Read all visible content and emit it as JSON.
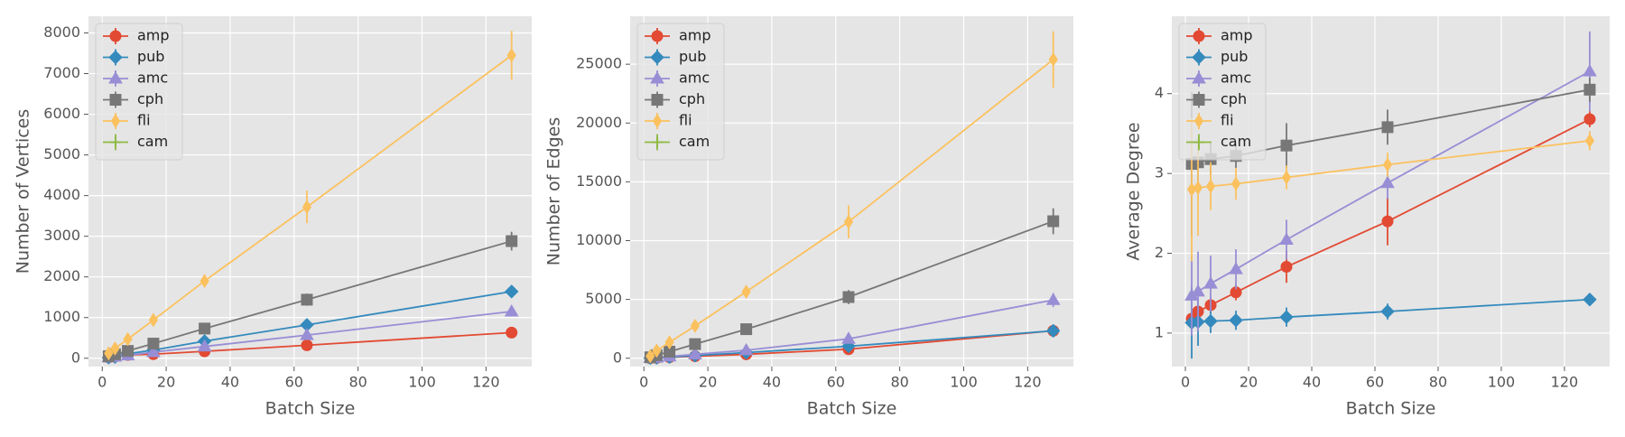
{
  "chart_data": [
    {
      "type": "line",
      "xlabel": "Batch Size",
      "ylabel": "Number of Vertices",
      "x": [
        2,
        4,
        8,
        16,
        32,
        64,
        128
      ],
      "xlim": [
        -4.3,
        134.3
      ],
      "xticks": [
        0,
        20,
        40,
        60,
        80,
        100,
        120
      ],
      "ylim": [
        -205,
        8410
      ],
      "yticks": [
        0,
        1000,
        2000,
        3000,
        4000,
        5000,
        6000,
        7000,
        8000
      ],
      "grid": true,
      "legend": "upper left",
      "series": [
        {
          "name": "amp",
          "color": "#E24A33",
          "marker": "circle",
          "values": [
            20,
            40,
            80,
            100,
            170,
            320,
            630
          ],
          "errors": [
            10,
            15,
            20,
            25,
            30,
            40,
            50
          ]
        },
        {
          "name": "pub",
          "color": "#348ABD",
          "marker": "diamond",
          "values": [
            15,
            30,
            110,
            200,
            420,
            820,
            1640
          ],
          "errors": [
            10,
            15,
            20,
            30,
            40,
            50,
            60
          ]
        },
        {
          "name": "amc",
          "color": "#988ED5",
          "marker": "triangle",
          "values": [
            20,
            40,
            70,
            150,
            290,
            570,
            1150
          ],
          "errors": [
            10,
            15,
            20,
            30,
            40,
            60,
            80
          ]
        },
        {
          "name": "cph",
          "color": "#777777",
          "marker": "square",
          "values": [
            50,
            100,
            180,
            360,
            730,
            1440,
            2880
          ],
          "errors": [
            20,
            30,
            40,
            50,
            80,
            150,
            230
          ]
        },
        {
          "name": "fli",
          "color": "#FBC15E",
          "marker": "thin_diamond",
          "values": [
            120,
            240,
            470,
            940,
            1900,
            3720,
            7450
          ],
          "errors": [
            40,
            60,
            60,
            80,
            100,
            400,
            600
          ]
        },
        {
          "name": "cam",
          "color": "#8EBA42",
          "marker": "plus",
          "values": [
            null,
            null,
            null,
            null,
            null,
            null,
            null
          ],
          "errors": [
            null,
            null,
            null,
            null,
            null,
            null,
            null
          ]
        }
      ]
    },
    {
      "type": "line",
      "xlabel": "Batch Size",
      "ylabel": "Number of Edges",
      "x": [
        2,
        4,
        8,
        16,
        32,
        64,
        128
      ],
      "xlim": [
        -4.3,
        134.3
      ],
      "xticks": [
        0,
        20,
        40,
        60,
        80,
        100,
        120
      ],
      "ylim": [
        -710,
        29080
      ],
      "yticks": [
        0,
        5000,
        10000,
        15000,
        20000,
        25000
      ],
      "grid": true,
      "legend": "upper left",
      "series": [
        {
          "name": "amp",
          "color": "#E24A33",
          "marker": "circle",
          "values": [
            10,
            30,
            80,
            170,
            330,
            770,
            2330
          ],
          "errors": [
            5,
            10,
            20,
            30,
            50,
            80,
            150
          ]
        },
        {
          "name": "pub",
          "color": "#348ABD",
          "marker": "diamond",
          "values": [
            15,
            35,
            100,
            230,
            480,
            1020,
            2330
          ],
          "errors": [
            5,
            10,
            20,
            30,
            50,
            80,
            150
          ]
        },
        {
          "name": "amc",
          "color": "#988ED5",
          "marker": "triangle",
          "values": [
            20,
            50,
            150,
            330,
            680,
            1650,
            4950
          ],
          "errors": [
            10,
            20,
            40,
            60,
            100,
            250,
            600
          ]
        },
        {
          "name": "cph",
          "color": "#777777",
          "marker": "square",
          "values": [
            80,
            260,
            560,
            1200,
            2470,
            5200,
            11650
          ],
          "errors": [
            40,
            60,
            80,
            120,
            200,
            600,
            1100
          ]
        },
        {
          "name": "fli",
          "color": "#FBC15E",
          "marker": "thin_diamond",
          "values": [
            180,
            650,
            1350,
            2750,
            5650,
            11600,
            25400
          ],
          "errors": [
            100,
            150,
            200,
            300,
            400,
            1400,
            2400
          ]
        },
        {
          "name": "cam",
          "color": "#8EBA42",
          "marker": "plus",
          "values": [
            null,
            null,
            null,
            null,
            null,
            null,
            null
          ],
          "errors": [
            null,
            null,
            null,
            null,
            null,
            null,
            null
          ]
        }
      ]
    },
    {
      "type": "line",
      "xlabel": "Batch Size",
      "ylabel": "Average Degree",
      "x": [
        2,
        4,
        8,
        16,
        32,
        64,
        128
      ],
      "xlim": [
        -4.3,
        134.3
      ],
      "xticks": [
        0,
        20,
        40,
        60,
        80,
        100,
        120
      ],
      "ylim": [
        0.58,
        4.97
      ],
      "yticks": [
        1,
        2,
        3,
        4
      ],
      "grid": true,
      "legend": "upper left",
      "series": [
        {
          "name": "amp",
          "color": "#E24A33",
          "marker": "circle",
          "values": [
            1.18,
            1.27,
            1.35,
            1.51,
            1.83,
            2.4,
            3.68
          ],
          "errors": [
            0.1,
            0.1,
            0.1,
            0.1,
            0.2,
            0.3,
            0.1
          ]
        },
        {
          "name": "pub",
          "color": "#348ABD",
          "marker": "diamond",
          "values": [
            1.13,
            1.14,
            1.15,
            1.16,
            1.2,
            1.27,
            1.42
          ],
          "errors": [
            0.45,
            0.3,
            0.15,
            0.12,
            0.12,
            0.1,
            0.05
          ]
        },
        {
          "name": "amc",
          "color": "#988ED5",
          "marker": "triangle",
          "values": [
            1.47,
            1.52,
            1.62,
            1.8,
            2.17,
            2.88,
            4.28
          ],
          "errors": [
            0.5,
            0.5,
            0.35,
            0.25,
            0.25,
            0.2,
            0.5
          ]
        },
        {
          "name": "cph",
          "color": "#777777",
          "marker": "square",
          "values": [
            3.12,
            3.14,
            3.18,
            3.22,
            3.35,
            3.58,
            4.05
          ],
          "errors": [
            0.9,
            0.3,
            0.2,
            0.15,
            0.28,
            0.22,
            0.15
          ]
        },
        {
          "name": "fli",
          "color": "#FBC15E",
          "marker": "thin_diamond",
          "values": [
            2.8,
            2.82,
            2.84,
            2.87,
            2.95,
            3.11,
            3.41
          ],
          "errors": [
            0.9,
            0.6,
            0.3,
            0.2,
            0.15,
            0.15,
            0.12
          ]
        },
        {
          "name": "cam",
          "color": "#8EBA42",
          "marker": "plus",
          "values": [
            null,
            null,
            null,
            null,
            null,
            null,
            null
          ],
          "errors": [
            null,
            null,
            null,
            null,
            null,
            null,
            null
          ]
        }
      ]
    }
  ]
}
